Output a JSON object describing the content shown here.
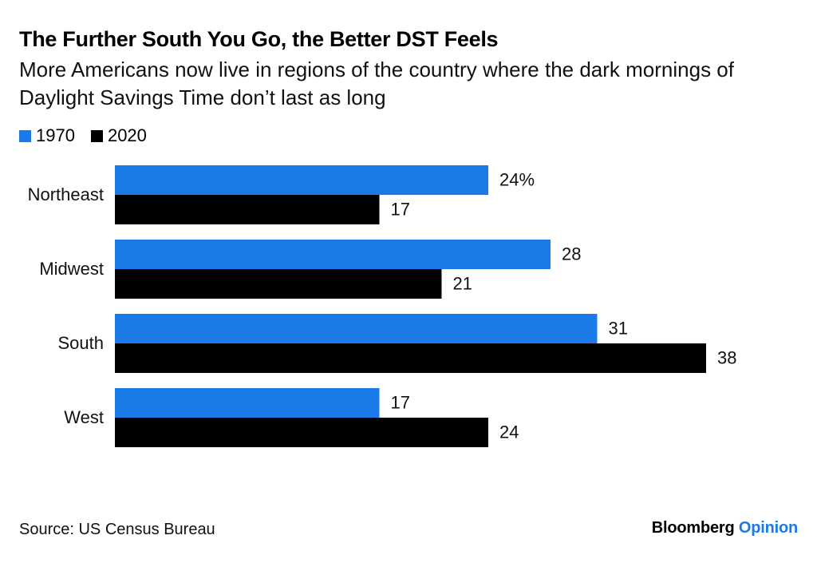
{
  "header": {
    "title": "The Further South You Go, the Better DST Feels",
    "subtitle": "More Americans now live in regions of the country where the dark mornings of Daylight Savings Time don’t last as long"
  },
  "legend": {
    "items": [
      {
        "label": "1970",
        "color": "#1a7be8"
      },
      {
        "label": "2020",
        "color": "#000000"
      }
    ]
  },
  "chart_data": {
    "type": "bar",
    "orientation": "horizontal",
    "categories": [
      "Northeast",
      "Midwest",
      "South",
      "West"
    ],
    "series": [
      {
        "name": "1970",
        "color": "#1a7be8",
        "values": [
          24,
          28,
          31,
          17
        ],
        "labels": [
          "24%",
          "28",
          "31",
          "17"
        ]
      },
      {
        "name": "2020",
        "color": "#000000",
        "values": [
          17,
          21,
          38,
          24
        ],
        "labels": [
          "17",
          "21",
          "38",
          "24"
        ]
      }
    ],
    "title": "The Further South You Go, the Better DST Feels",
    "subtitle": "More Americans now live in regions of the country where the dark mornings of Daylight Savings Time don’t last as long",
    "xlabel": "",
    "ylabel": "",
    "xlim": [
      0,
      38
    ],
    "grid": false,
    "legend_position": "top-left"
  },
  "footer": {
    "source": "Source: US Census Bureau",
    "brand_main": "Bloomberg",
    "brand_sub": "Opinion"
  }
}
